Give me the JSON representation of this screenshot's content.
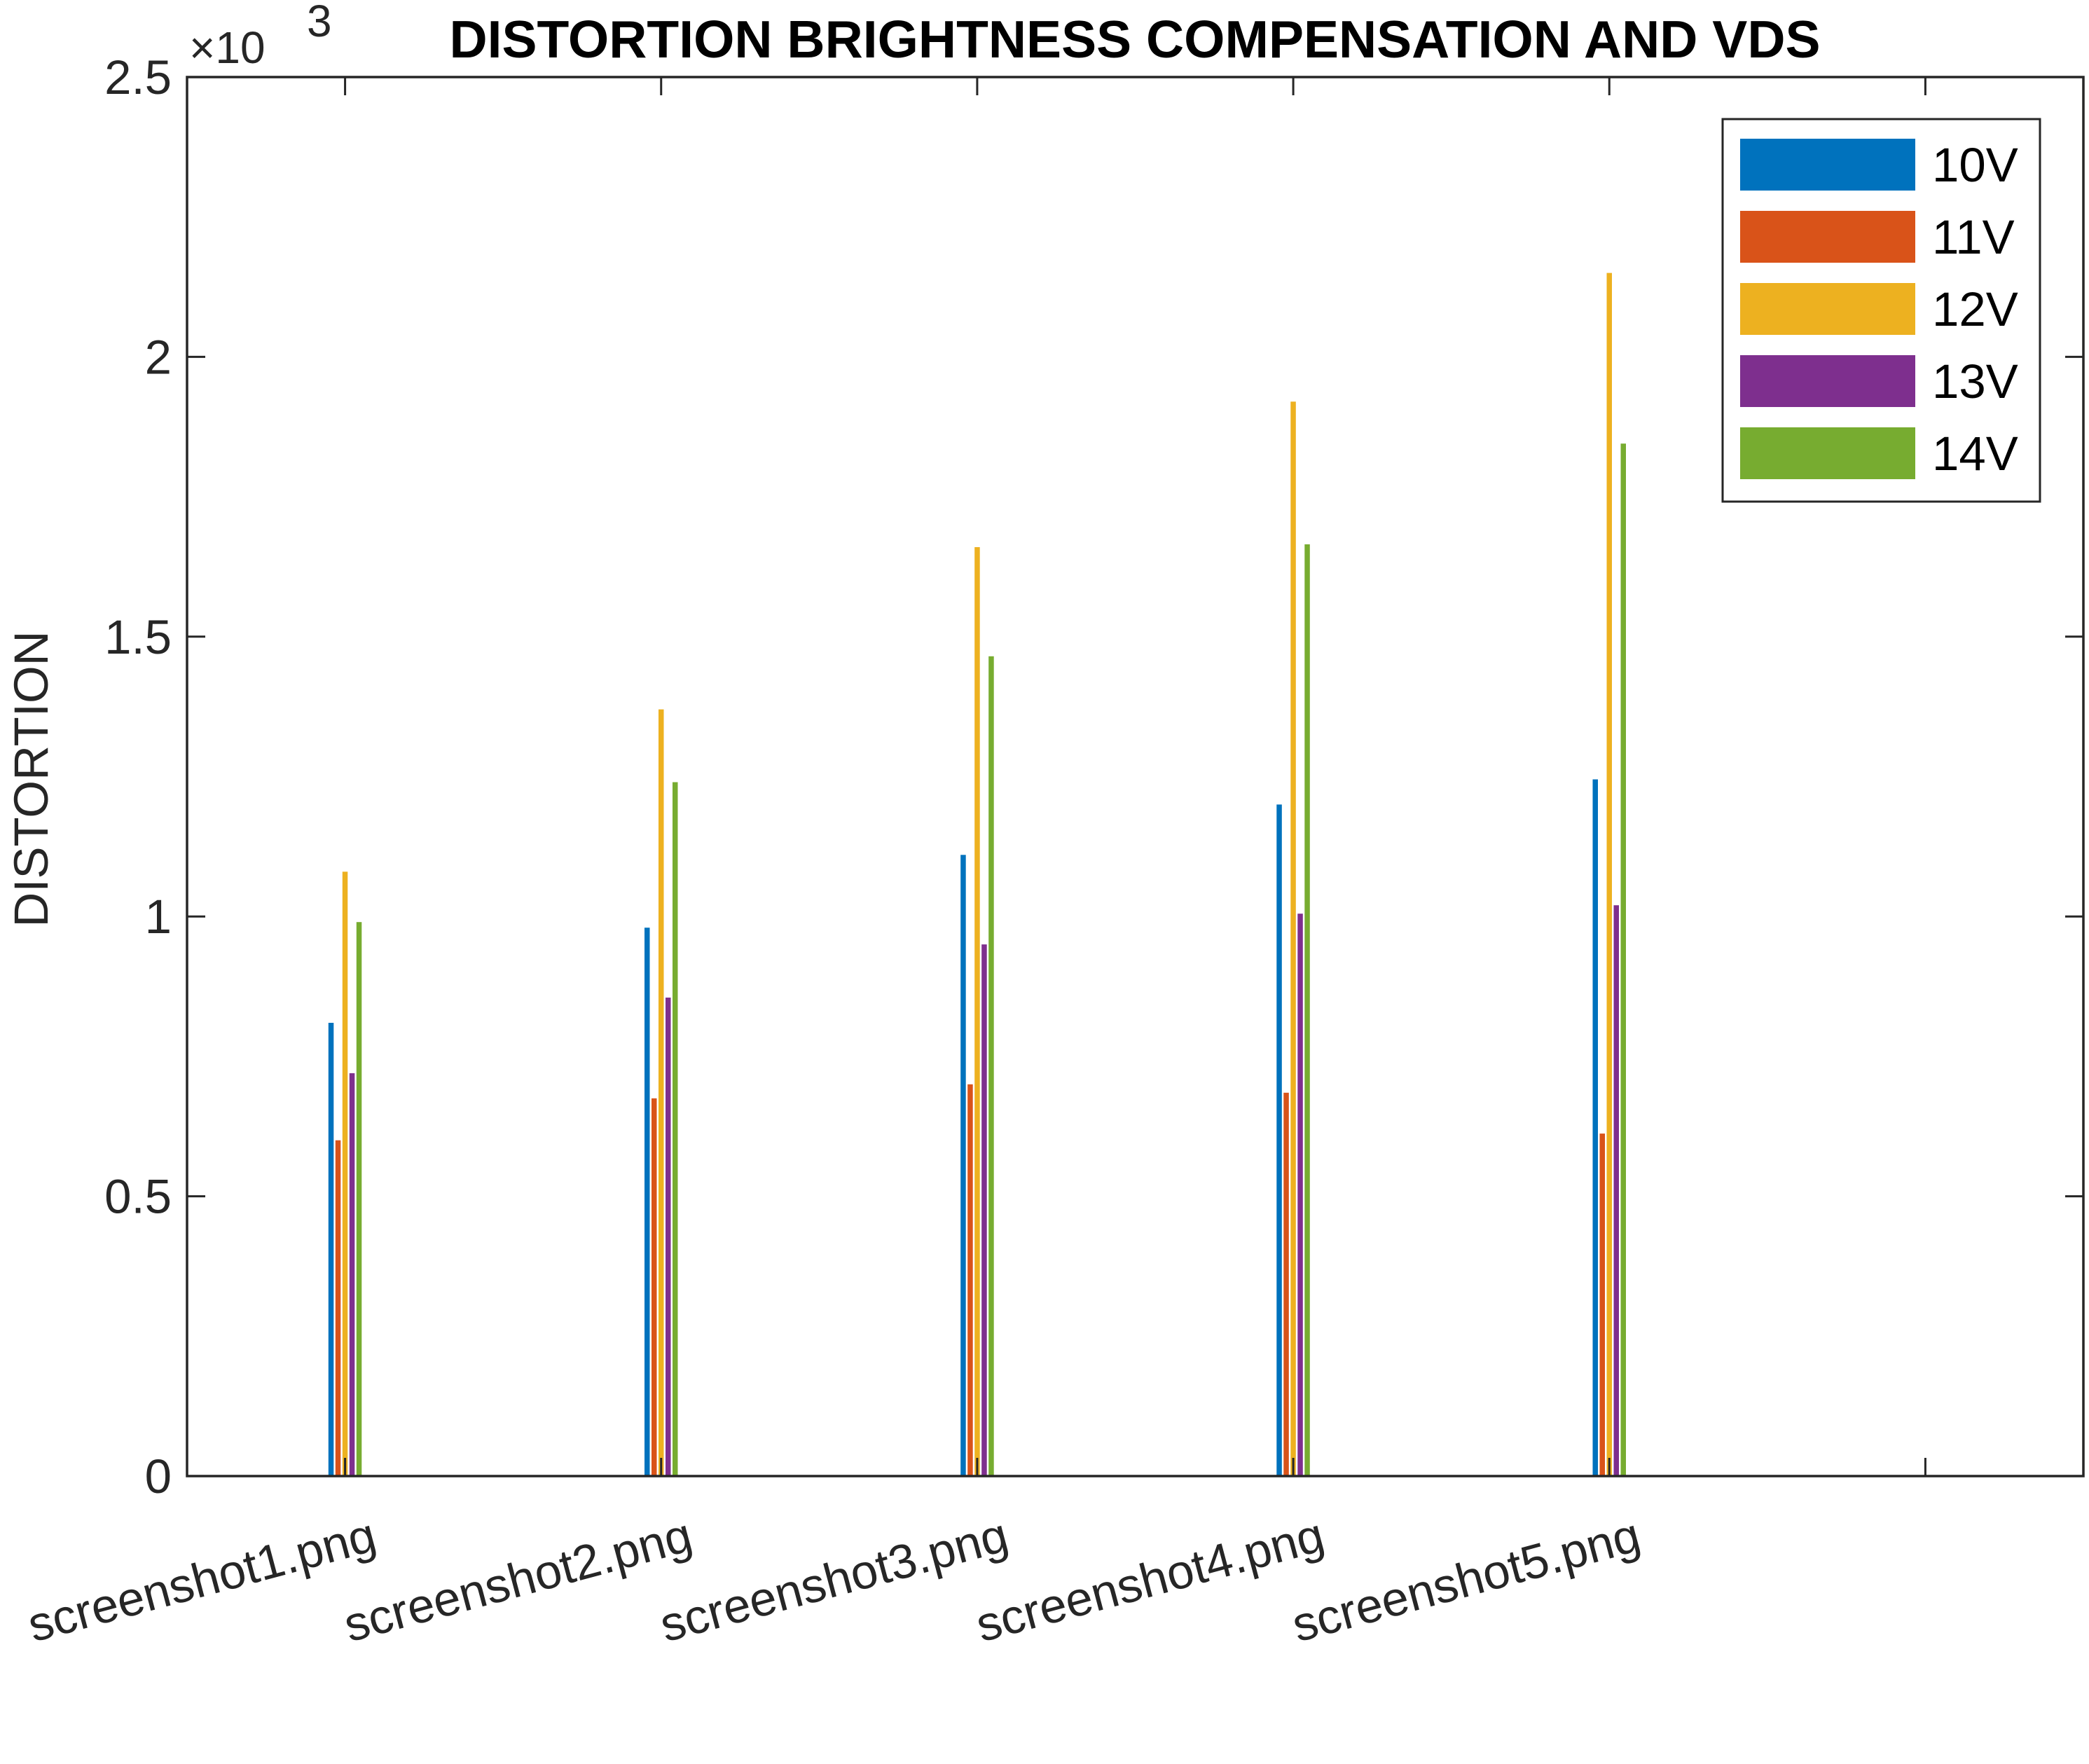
{
  "chart_data": {
    "type": "bar",
    "title": "DISTORTION BRIGHTNESS COMPENSATION AND VDS",
    "xlabel": "",
    "ylabel": "DISTORTION",
    "y_exponent_label": "×10",
    "y_exponent_power": "3",
    "ylim": [
      0,
      2.5
    ],
    "yticks": [
      {
        "value": 0,
        "label": "0"
      },
      {
        "value": 0.5,
        "label": "0.5"
      },
      {
        "value": 1,
        "label": "1"
      },
      {
        "value": 1.5,
        "label": "1.5"
      },
      {
        "value": 2,
        "label": "2"
      },
      {
        "value": 2.5,
        "label": "2.5"
      }
    ],
    "categories": [
      "screenshot1.png",
      "screenshot2.png",
      "screenshot3.png",
      "screenshot4.png",
      "screenshot5.png"
    ],
    "series": [
      {
        "name": "10V",
        "color": "#0072BD",
        "values": [
          0.81,
          0.98,
          1.11,
          1.2,
          1.245
        ]
      },
      {
        "name": "11V",
        "color": "#D95319",
        "values": [
          0.6,
          0.675,
          0.7,
          0.685,
          0.612
        ]
      },
      {
        "name": "12V",
        "color": "#EDB120",
        "values": [
          1.08,
          1.37,
          1.66,
          1.92,
          2.15
        ]
      },
      {
        "name": "13V",
        "color": "#7E2F8E",
        "values": [
          0.72,
          0.855,
          0.95,
          1.005,
          1.02
        ]
      },
      {
        "name": "14V",
        "color": "#77AC30",
        "values": [
          0.99,
          1.24,
          1.465,
          1.665,
          1.845
        ]
      }
    ],
    "legend_position": "top-right",
    "grid": false
  }
}
